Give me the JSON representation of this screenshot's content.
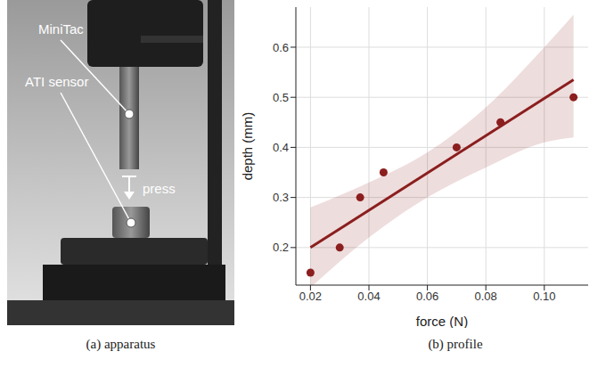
{
  "apparatus": {
    "labels": {
      "tactile_sensor": "MiniTac",
      "force_sensor": "ATI sensor",
      "action": "press"
    },
    "caption": "(a) apparatus"
  },
  "chart_data": {
    "type": "scatter",
    "caption": "(b) profile",
    "x_label": "force (N)",
    "y_label": "depth (mm)",
    "x": [
      0.02,
      0.03,
      0.037,
      0.045,
      0.07,
      0.085,
      0.11
    ],
    "values": [
      0.15,
      0.2,
      0.3,
      0.35,
      0.4,
      0.45,
      0.5
    ],
    "color": "#8b1e1e",
    "fit": {
      "x": [
        0.02,
        0.11
      ],
      "values": [
        0.2,
        0.535
      ]
    },
    "band": {
      "x": [
        0.02,
        0.04,
        0.06,
        0.08,
        0.1,
        0.11
      ],
      "lower": [
        0.12,
        0.22,
        0.3,
        0.36,
        0.41,
        0.42
      ],
      "upper": [
        0.28,
        0.33,
        0.39,
        0.48,
        0.6,
        0.665
      ]
    },
    "xlim": [
      0.015,
      0.115
    ],
    "xticks": [
      0.02,
      0.04,
      0.06,
      0.08,
      {
        "value": 0.1,
        "label": "0.10"
      }
    ],
    "ylim": [
      0.125,
      0.68
    ],
    "yticks": [
      0.2,
      0.3,
      0.4,
      0.5,
      0.6
    ],
    "grid": true
  }
}
